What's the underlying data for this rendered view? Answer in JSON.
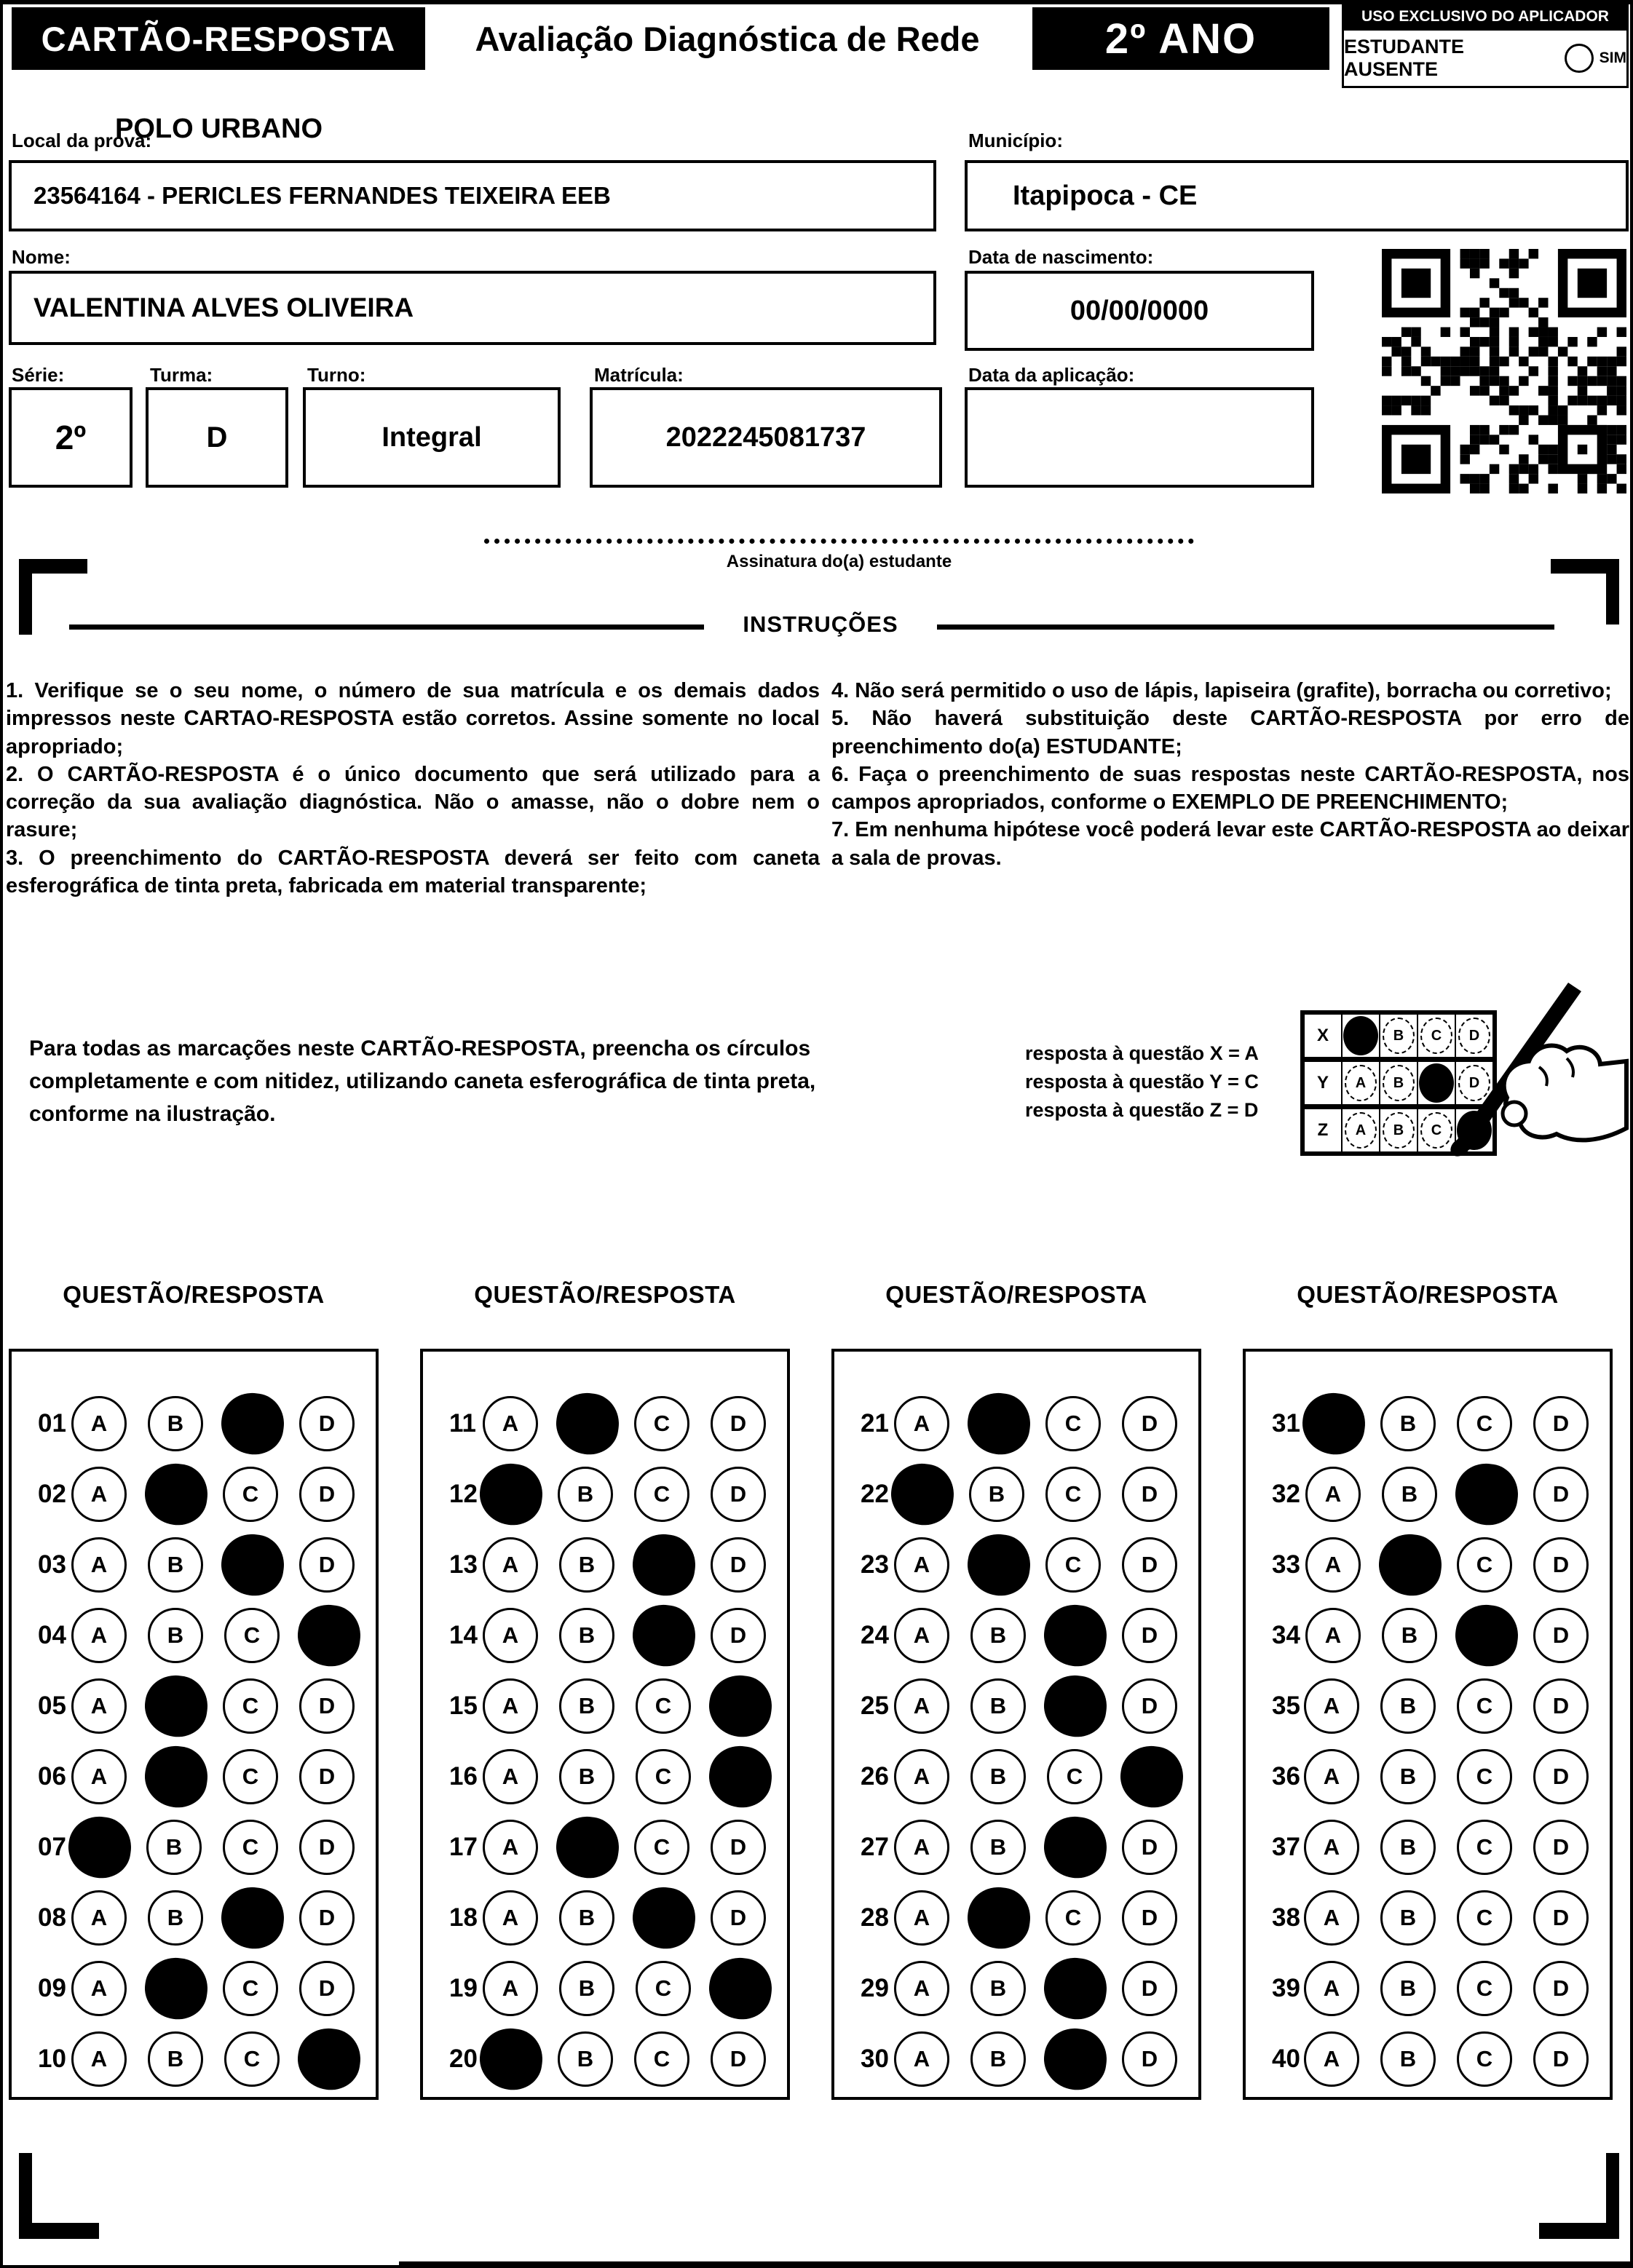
{
  "colors": {
    "ink": "#000000",
    "paper": "#ffffff"
  },
  "icons": {
    "qr": "qr-code",
    "hand": "hand-holding-pen",
    "absent_option": "empty-circle"
  },
  "header": {
    "card_title": "CARTÃO-RESPOSTA",
    "exam_title": "Avaliação Diagnóstica de Rede",
    "grade": "2º ANO",
    "applicator_title": "USO EXCLUSIVO DO APLICADOR",
    "absent_label": "ESTUDANTE AUSENTE",
    "absent_option": "SIM"
  },
  "form": {
    "local_label": "Local da prova:",
    "local_value": "POLO URBANO",
    "school_value": "23564164 - PERICLES FERNANDES TEIXEIRA EEB",
    "municipio_label": "Município:",
    "municipio_value": "Itapipoca - CE",
    "nome_label": "Nome:",
    "nome_value": "VALENTINA ALVES OLIVEIRA",
    "nascimento_label": "Data de nascimento:",
    "nascimento_value": "00/00/0000",
    "serie_label": "Série:",
    "serie_value": "2º",
    "turma_label": "Turma:",
    "turma_value": "D",
    "turno_label": "Turno:",
    "turno_value": "Integral",
    "matricula_label": "Matrícula:",
    "matricula_value": "2022245081737",
    "aplicacao_label": "Data da aplicação:",
    "aplicacao_value": ""
  },
  "signature": {
    "label": "Assinatura do(a) estudante"
  },
  "instructions": {
    "title": "INSTRUÇÕES",
    "left": [
      "1. Verifique se o seu nome, o número de sua matrícula e os demais dados impressos neste CARTAO-RESPOSTA estão corretos. Assine somente no local apropriado;",
      "2. O CARTÃO-RESPOSTA é o único documento que será utilizado para a correção da sua avaliação diagnóstica. Não o amasse, não o dobre nem o rasure;",
      "3. O preenchimento do CARTÃO-RESPOSTA deverá ser feito com caneta esferográfica de tinta preta, fabricada em material transparente;"
    ],
    "right": [
      "4. Não será permitido o uso de lápis, lapiseira (grafite), borracha ou corretivo;",
      "5. Não haverá substituição deste CARTÃO-RESPOSTA por erro de preenchimento do(a) ESTUDANTE;",
      "6. Faça o preenchimento de suas respostas neste CARTÃO-RESPOSTA, nos campos apropriados, conforme o EXEMPLO DE PREENCHIMENTO;",
      "7. Em nenhuma hipótese você poderá levar este CARTÃO-RESPOSTA ao deixar a sala de provas."
    ]
  },
  "example": {
    "paragraph": "Para todas as marcações neste CARTÃO-RESPOSTA, preencha os círculos completamente e com nitidez, utilizando caneta esferográfica de tinta preta, conforme na ilustração.",
    "legend": [
      "resposta à questão X = A",
      "resposta à questão Y = C",
      "resposta à questão Z = D"
    ],
    "grid": {
      "options": [
        "A",
        "B",
        "C",
        "D"
      ],
      "rows": [
        {
          "label": "X",
          "filled": "A"
        },
        {
          "label": "Y",
          "filled": "C"
        },
        {
          "label": "Z",
          "filled": "D"
        }
      ]
    }
  },
  "answers": {
    "column_header": "QUESTÃO/RESPOSTA",
    "options": [
      "A",
      "B",
      "C",
      "D"
    ],
    "columns": [
      {
        "questions": [
          {
            "number": "01",
            "marked": "C"
          },
          {
            "number": "02",
            "marked": "B"
          },
          {
            "number": "03",
            "marked": "C"
          },
          {
            "number": "04",
            "marked": "D"
          },
          {
            "number": "05",
            "marked": "B"
          },
          {
            "number": "06",
            "marked": "B"
          },
          {
            "number": "07",
            "marked": "A"
          },
          {
            "number": "08",
            "marked": "C"
          },
          {
            "number": "09",
            "marked": "B"
          },
          {
            "number": "10",
            "marked": "D"
          }
        ]
      },
      {
        "questions": [
          {
            "number": "11",
            "marked": "B"
          },
          {
            "number": "12",
            "marked": "A"
          },
          {
            "number": "13",
            "marked": "C"
          },
          {
            "number": "14",
            "marked": "C"
          },
          {
            "number": "15",
            "marked": "D"
          },
          {
            "number": "16",
            "marked": "D"
          },
          {
            "number": "17",
            "marked": "B"
          },
          {
            "number": "18",
            "marked": "C"
          },
          {
            "number": "19",
            "marked": "D"
          },
          {
            "number": "20",
            "marked": "A"
          }
        ]
      },
      {
        "questions": [
          {
            "number": "21",
            "marked": "B"
          },
          {
            "number": "22",
            "marked": "A"
          },
          {
            "number": "23",
            "marked": "B"
          },
          {
            "number": "24",
            "marked": "C"
          },
          {
            "number": "25",
            "marked": "C"
          },
          {
            "number": "26",
            "marked": "D"
          },
          {
            "number": "27",
            "marked": "C"
          },
          {
            "number": "28",
            "marked": "B"
          },
          {
            "number": "29",
            "marked": "C"
          },
          {
            "number": "30",
            "marked": "C"
          }
        ]
      },
      {
        "questions": [
          {
            "number": "31",
            "marked": "A"
          },
          {
            "number": "32",
            "marked": "C"
          },
          {
            "number": "33",
            "marked": "B"
          },
          {
            "number": "34",
            "marked": "C"
          },
          {
            "number": "35",
            "marked": ""
          },
          {
            "number": "36",
            "marked": ""
          },
          {
            "number": "37",
            "marked": ""
          },
          {
            "number": "38",
            "marked": ""
          },
          {
            "number": "39",
            "marked": ""
          },
          {
            "number": "40",
            "marked": ""
          }
        ]
      }
    ]
  }
}
